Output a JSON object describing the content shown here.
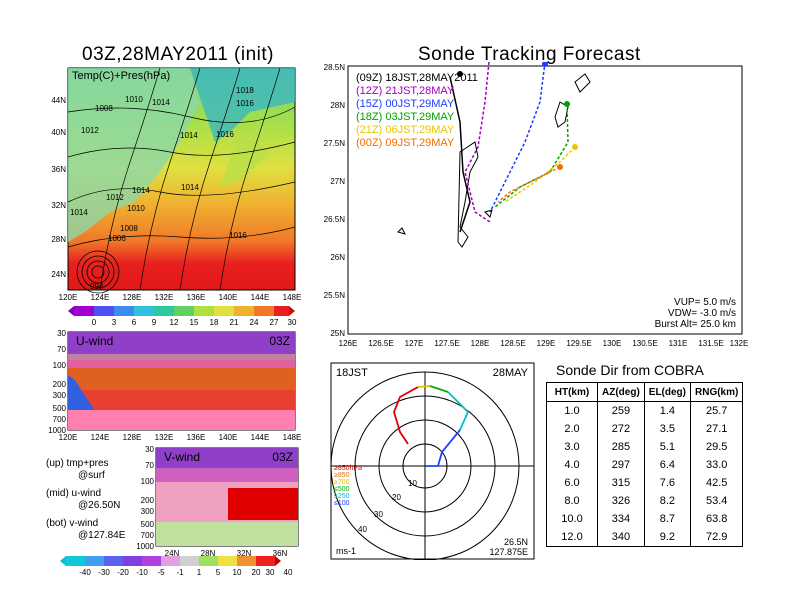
{
  "map": {
    "title": "03Z,28MAY2011 (init)",
    "field_label": "Temp(C)+Pres(hPa)",
    "lat_labels": [
      "44N",
      "40N",
      "36N",
      "32N",
      "28N",
      "24N"
    ],
    "lon_labels": [
      "120E",
      "124E",
      "128E",
      "132E",
      "136E",
      "140E",
      "144E",
      "148E"
    ],
    "isobars": [
      "1010",
      "1014",
      "1018",
      "1008",
      "1016",
      "1012",
      "1014",
      "1016",
      "1012",
      "1014",
      "1014",
      "1010",
      "1008",
      "1006",
      "1016",
      "1014",
      "994",
      "06",
      "04"
    ],
    "colorbar_labels": [
      "0",
      "3",
      "6",
      "9",
      "12",
      "15",
      "18",
      "21",
      "24",
      "27",
      "30"
    ]
  },
  "u_panel": {
    "label": "U-wind",
    "time": "03Z",
    "p_labels": [
      "30",
      "70",
      "100",
      "200",
      "300",
      "500",
      "700",
      "1000"
    ],
    "lon_labels": [
      "120E",
      "124E",
      "128E",
      "132E",
      "136E",
      "140E",
      "144E",
      "148E"
    ]
  },
  "v_panel": {
    "label": "V-wind",
    "time": "03Z",
    "p_labels": [
      "30",
      "70",
      "100",
      "200",
      "300",
      "500",
      "700",
      "1000"
    ],
    "lat_labels": [
      "24N",
      "28N",
      "32N",
      "36N"
    ],
    "colorbar_labels": [
      "-40",
      "-30",
      "-20",
      "-10",
      "-5",
      "-1",
      "1",
      "5",
      "10",
      "20",
      "30",
      "40"
    ]
  },
  "legend_notes": {
    "up": "(up) tmp+pres",
    "up2": "@surf",
    "mid": "(mid) u-wind",
    "mid2": "@26.50N",
    "bot": "(bot) v-wind",
    "bot2": "@127.84E"
  },
  "tracking": {
    "title": "Sonde Tracking Forecast",
    "lat_labels": [
      "28.5N",
      "28N",
      "27.5N",
      "27N",
      "26.5N",
      "26N",
      "25.5N",
      "25N"
    ],
    "lon_labels": [
      "126E",
      "126.5E",
      "127E",
      "127.5E",
      "128E",
      "128.5E",
      "129E",
      "129.5E",
      "130E",
      "130.5E",
      "131E",
      "131.5E",
      "132E"
    ],
    "legend": [
      {
        "z": "(09Z)",
        "t": "18JST,28MAY2011",
        "color": "#000000"
      },
      {
        "z": "(12Z)",
        "t": "21JST,28MAY",
        "color": "#a000c0"
      },
      {
        "z": "(15Z)",
        "t": "00JST,29MAY",
        "color": "#1e3cff"
      },
      {
        "z": "(18Z)",
        "t": "03JST,29MAY",
        "color": "#00a000"
      },
      {
        "z": "(21Z)",
        "t": "06JST,29MAY",
        "color": "#e6c800"
      },
      {
        "z": "(00Z)",
        "t": "09JST,29MAY",
        "color": "#f07000"
      }
    ],
    "params": [
      "VUP=  5.0 m/s",
      "VDW= -3.0 m/s",
      "Burst Alt=  25.0 km"
    ]
  },
  "polar": {
    "time": "18JST",
    "date": "28MAY",
    "ring_labels": [
      "10",
      "20",
      "30",
      "40"
    ],
    "unit": "ms-1",
    "loc1": "26.5N",
    "loc2": "127.875E",
    "levels": [
      {
        "label": "≥850hPa",
        "color": "#e00000"
      },
      {
        "label": "≥850",
        "color": "#e07000"
      },
      {
        "label": "≥700",
        "color": "#e0c000"
      },
      {
        "label": "≤500",
        "color": "#00b000"
      },
      {
        "label": "≤250",
        "color": "#00c0c0"
      },
      {
        "label": "≤100",
        "color": "#2040ff"
      }
    ]
  },
  "table": {
    "title": "Sonde Dir from COBRA",
    "headers": [
      "HT(km)",
      "AZ(deg)",
      "EL(deg)",
      "RNG(km)"
    ],
    "rows": [
      [
        "1.0",
        "259",
        "1.4",
        "25.7"
      ],
      [
        "2.0",
        "272",
        "3.5",
        "27.1"
      ],
      [
        "3.0",
        "285",
        "5.1",
        "29.5"
      ],
      [
        "4.0",
        "297",
        "6.4",
        "33.0"
      ],
      [
        "6.0",
        "315",
        "7.6",
        "42.5"
      ],
      [
        "8.0",
        "326",
        "8.2",
        "53.4"
      ],
      [
        "10.0",
        "334",
        "8.7",
        "63.8"
      ],
      [
        "12.0",
        "340",
        "9.2",
        "72.9"
      ]
    ]
  },
  "chart_data": {
    "type": "table",
    "title": "Sonde Dir from COBRA",
    "columns": [
      "HT(km)",
      "AZ(deg)",
      "EL(deg)",
      "RNG(km)"
    ],
    "rows": [
      [
        1.0,
        259,
        1.4,
        25.7
      ],
      [
        2.0,
        272,
        3.5,
        27.1
      ],
      [
        3.0,
        285,
        5.1,
        29.5
      ],
      [
        4.0,
        297,
        6.4,
        33.0
      ],
      [
        6.0,
        315,
        7.6,
        42.5
      ],
      [
        8.0,
        326,
        8.2,
        53.4
      ],
      [
        10.0,
        334,
        8.7,
        63.8
      ],
      [
        12.0,
        340,
        9.2,
        72.9
      ]
    ]
  }
}
